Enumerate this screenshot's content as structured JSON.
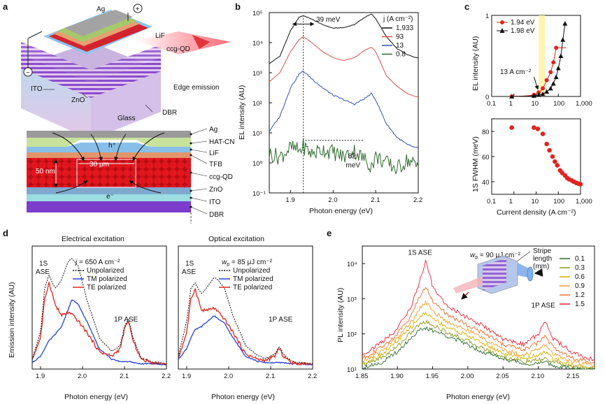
{
  "panels": {
    "a": {
      "label": "a",
      "device_labels": [
        "Ag",
        "LiF",
        "ccg-QD",
        "ITO",
        "ZnO",
        "Glass",
        "DBR",
        "Edge emission"
      ],
      "terminals": {
        "plus": "+",
        "minus": "−"
      },
      "stack_labels": [
        "Ag",
        "HAT-CN",
        "LiF",
        "TFB",
        "ccg-QD",
        "ZnO",
        "ITO",
        "DBR"
      ],
      "dim_50nm": "50 nm",
      "dim_30um": "30 μm",
      "hole": "h⁺",
      "electron": "e⁻",
      "colors": {
        "ag": "#9a9a9a",
        "hatcn": "#c7e29a",
        "lif": "#88bfe8",
        "tfb": "#e1956b",
        "qd": "#d8131b",
        "zno": "#7fa8cf",
        "ito": "#9bdde0",
        "dbr": "#7c3ccc"
      }
    },
    "b": {
      "label": "b",
      "chart_data": {
        "type": "line",
        "xlabel": "Photon energy (eV)",
        "ylabel": "EL intensity (AU)",
        "xlim": [
          1.85,
          2.2
        ],
        "ylim_log10": [
          -1,
          5
        ],
        "x_ticks": [
          "1.9",
          "2.0",
          "2.1",
          "2.2"
        ],
        "y_ticks": [
          "10⁻¹",
          "10⁰",
          "10¹",
          "10²",
          "10³",
          "10⁴",
          "10⁵"
        ],
        "legend_title": "j (A cm⁻²)",
        "legend_entries": [
          "1,933",
          "93",
          "13",
          "0.8"
        ],
        "series_colors": [
          "#111111",
          "#d9534f",
          "#3350b0",
          "#2e6b2e"
        ],
        "peak_log10": [
          4.9,
          4.2,
          3.05,
          0.55
        ],
        "annotations": [
          "39 meV",
          "82 meV"
        ],
        "x": [
          1.85,
          1.875,
          1.9,
          1.92,
          1.93,
          1.95,
          1.975,
          2.0,
          2.025,
          2.05,
          2.075,
          2.09,
          2.1,
          2.125,
          2.15,
          2.175,
          2.195
        ],
        "series": [
          {
            "name": "1,933",
            "log10": [
              3.3,
              3.55,
              4.4,
              4.85,
              4.9,
              4.78,
              4.6,
              4.48,
              4.5,
              4.6,
              4.85,
              4.95,
              4.8,
              4.2,
              3.8,
              3.6,
              3.5
            ]
          },
          {
            "name": "93",
            "log10": [
              2.7,
              3.0,
              3.7,
              4.1,
              4.2,
              4.0,
              3.7,
              3.5,
              3.4,
              3.5,
              3.75,
              3.85,
              3.7,
              2.9,
              2.55,
              2.3,
              2.2
            ]
          },
          {
            "name": "13",
            "log10": [
              1.05,
              1.55,
              2.5,
              2.95,
              3.05,
              2.8,
              2.5,
              2.25,
              2.1,
              1.95,
              2.15,
              2.3,
              2.1,
              1.3,
              0.85,
              0.6,
              0.5
            ]
          },
          {
            "name": "0.8",
            "log10": [
              0.3,
              0.2,
              0.5,
              0.4,
              0.55,
              0.3,
              0.45,
              0.35,
              0.2,
              0.4,
              0.1,
              -0.1,
              0.2,
              0.0,
              -0.2,
              0.1,
              -0.1
            ]
          }
        ]
      }
    },
    "c": {
      "label": "c",
      "top": {
        "chart_data": {
          "type": "scatter",
          "xlabel": "",
          "ylabel": "EL intensity (AU)",
          "x_scale": "log",
          "xlim": [
            0.1,
            1000
          ],
          "ylim": [
            0,
            1
          ],
          "x_ticks": [
            "0.1",
            "1",
            "10",
            "100",
            "1,000"
          ],
          "y_ticks": [
            "0",
            "1"
          ],
          "annotation": "13 A cm⁻²",
          "series": [
            {
              "name": "1.94 eV",
              "color": "#e0251f",
              "marker": "circle",
              "x": [
                0.8,
                8,
                13,
                20,
                30,
                45,
                60,
                80
              ],
              "y": [
                0.0,
                0.02,
                0.05,
                0.1,
                0.2,
                0.3,
                0.42,
                0.6
              ]
            },
            {
              "name": "1.98 eV",
              "color": "#111111",
              "marker": "triangle",
              "x": [
                0.8,
                8,
                13,
                20,
                30,
                45,
                60,
                80,
                100,
                130,
                160,
                200
              ],
              "y": [
                0.0,
                0.01,
                0.02,
                0.03,
                0.06,
                0.1,
                0.16,
                0.24,
                0.35,
                0.5,
                0.7,
                0.9
              ]
            }
          ]
        }
      },
      "bottom": {
        "chart_data": {
          "type": "scatter",
          "xlabel": "Current density (A cm⁻²)",
          "ylabel": "1S FWHM (meV)",
          "x_scale": "log",
          "xlim": [
            0.1,
            1000
          ],
          "ylim": [
            30,
            90
          ],
          "x_ticks": [
            "0.1",
            "1",
            "10",
            "100",
            "1,000"
          ],
          "y_ticks": [
            "40",
            "60",
            "80"
          ],
          "series": [
            {
              "name": "1S FWHM",
              "color": "#e0251f",
              "x": [
                0.8,
                8,
                12,
                20,
                30,
                40,
                55,
                70,
                90,
                120,
                150,
                200,
                250,
                300,
                400,
                500,
                650,
                800,
                1000
              ],
              "y": [
                83,
                83,
                82,
                78,
                70,
                65,
                60,
                56,
                53,
                49,
                47,
                45,
                43,
                42,
                41,
                40,
                39,
                38.5,
                38
              ]
            }
          ]
        }
      }
    },
    "d": {
      "label": "d",
      "left": {
        "title": "Electrical excitation",
        "param_sym": "j",
        "param_val": " = 650 A cm⁻²",
        "peak1": "1S",
        "peak1b": "ASE",
        "peak2": "1P ASE",
        "xlabel": "Photon energy (eV)",
        "ylabel": "Emission intensity (AU)",
        "chart_data": {
          "type": "line",
          "xlim": [
            1.88,
            2.2
          ],
          "x_ticks": [
            "1.9",
            "2.0",
            "2.1",
            "2.2"
          ],
          "legend": [
            "Unpolarized",
            "TM polarized",
            "TE polarized"
          ],
          "colors": [
            "#111111",
            "#2443d6",
            "#e0251f"
          ],
          "x": [
            1.88,
            1.9,
            1.91,
            1.92,
            1.935,
            1.95,
            1.965,
            1.975,
            1.99,
            2.01,
            2.04,
            2.07,
            2.09,
            2.1,
            2.11,
            2.12,
            2.14,
            2.17,
            2.2
          ],
          "series": [
            {
              "name": "Unpolarized",
              "values": [
                0.05,
                0.3,
                0.7,
                0.82,
                0.7,
                0.78,
                0.94,
                0.98,
                0.9,
                0.6,
                0.25,
                0.12,
                0.18,
                0.35,
                0.42,
                0.25,
                0.06,
                0.02,
                0.01
              ]
            },
            {
              "name": "TM polarized",
              "values": [
                0.02,
                0.08,
                0.15,
                0.22,
                0.28,
                0.35,
                0.5,
                0.6,
                0.55,
                0.4,
                0.15,
                0.05,
                0.03,
                0.03,
                0.03,
                0.02,
                0.01,
                0.01,
                0.0
              ]
            },
            {
              "name": "TE polarized",
              "values": [
                0.05,
                0.25,
                0.6,
                0.76,
                0.55,
                0.45,
                0.48,
                0.46,
                0.4,
                0.3,
                0.12,
                0.08,
                0.15,
                0.33,
                0.4,
                0.22,
                0.05,
                0.02,
                0.01
              ]
            }
          ]
        }
      },
      "right": {
        "title": "Optical excitation",
        "param_sym": "w",
        "param_sub": "p",
        "param_val": " = 85 μJ cm⁻²",
        "peak1": "1S",
        "peak1b": "ASE",
        "peak2": "1P ASE",
        "xlabel": "Photon energy (eV)",
        "chart_data": {
          "type": "line",
          "xlim": [
            1.88,
            2.2
          ],
          "x_ticks": [
            "1.9",
            "2.0",
            "2.1",
            "2.2"
          ],
          "legend": [
            "Unpolarized",
            "TM polarized",
            "TE polarized"
          ],
          "colors": [
            "#111111",
            "#2443d6",
            "#e0251f"
          ],
          "x": [
            1.88,
            1.9,
            1.91,
            1.92,
            1.935,
            1.95,
            1.965,
            1.975,
            1.99,
            2.01,
            2.04,
            2.07,
            2.09,
            2.11,
            2.12,
            2.13,
            2.15,
            2.17,
            2.2
          ],
          "series": [
            {
              "name": "Unpolarized",
              "values": [
                0.08,
                0.4,
                0.7,
                0.75,
                0.65,
                0.72,
                0.8,
                0.78,
                0.7,
                0.45,
                0.18,
                0.08,
                0.06,
                0.1,
                0.17,
                0.1,
                0.03,
                0.02,
                0.01
              ]
            },
            {
              "name": "TM polarized",
              "values": [
                0.05,
                0.15,
                0.25,
                0.32,
                0.35,
                0.4,
                0.45,
                0.42,
                0.38,
                0.25,
                0.08,
                0.03,
                0.02,
                0.02,
                0.02,
                0.02,
                0.01,
                0.01,
                0.0
              ]
            },
            {
              "name": "TE polarized",
              "values": [
                0.06,
                0.3,
                0.6,
                0.7,
                0.5,
                0.5,
                0.52,
                0.48,
                0.42,
                0.3,
                0.1,
                0.05,
                0.04,
                0.08,
                0.15,
                0.08,
                0.02,
                0.01,
                0.01
              ]
            }
          ]
        }
      }
    },
    "e": {
      "label": "e",
      "peak1": "1S ASE",
      "peak2": "1P ASE",
      "pump_sym": "w",
      "pump_sub": "p",
      "pump_val": " = 90 μJ cm⁻²",
      "stripe_label": [
        "Stripe",
        "length",
        "(mm)"
      ],
      "chart_data": {
        "type": "line",
        "xlabel": "Photon energy (eV)",
        "ylabel": "PL intensity (AU)",
        "xlim": [
          1.85,
          2.18
        ],
        "ylim_log10": [
          1,
          4.5
        ],
        "x_ticks": [
          "1.85",
          "1.90",
          "1.95",
          "2.00",
          "2.05",
          "2.10",
          "2.15"
        ],
        "y_ticks": [
          "10¹",
          "10²",
          "10³",
          "10⁴"
        ],
        "legend": [
          "0.1",
          "0.3",
          "0.6",
          "0.9",
          "1.2",
          "1.5"
        ],
        "colors": [
          "#2e6b2e",
          "#8c9a1e",
          "#d6b000",
          "#f0a030",
          "#ee6a2a",
          "#e8223a"
        ],
        "x": [
          1.85,
          1.88,
          1.9,
          1.92,
          1.93,
          1.94,
          1.95,
          1.97,
          2.0,
          2.02,
          2.05,
          2.08,
          2.1,
          2.11,
          2.12,
          2.15,
          2.18
        ],
        "series": [
          {
            "name": "0.1",
            "log10": [
              1.05,
              1.2,
              1.5,
              1.9,
              2.1,
              2.15,
              2.1,
              1.95,
              1.7,
              1.5,
              1.3,
              1.15,
              1.15,
              1.2,
              1.1,
              1.0,
              1.0
            ]
          },
          {
            "name": "0.3",
            "log10": [
              1.1,
              1.35,
              1.65,
              2.05,
              2.25,
              2.35,
              2.25,
              2.05,
              1.8,
              1.6,
              1.35,
              1.2,
              1.25,
              1.3,
              1.2,
              1.05,
              1.0
            ]
          },
          {
            "name": "0.6",
            "log10": [
              1.15,
              1.45,
              1.8,
              2.2,
              2.45,
              2.6,
              2.45,
              2.2,
              1.95,
              1.75,
              1.45,
              1.3,
              1.4,
              1.5,
              1.3,
              1.1,
              1.05
            ]
          },
          {
            "name": "0.9",
            "log10": [
              1.2,
              1.55,
              1.9,
              2.35,
              2.7,
              2.9,
              2.65,
              2.35,
              2.1,
              1.9,
              1.55,
              1.4,
              1.55,
              1.7,
              1.45,
              1.2,
              1.1
            ]
          },
          {
            "name": "1.2",
            "log10": [
              1.3,
              1.65,
              2.0,
              2.55,
              3.0,
              3.35,
              2.95,
              2.55,
              2.25,
              2.05,
              1.7,
              1.55,
              1.75,
              1.95,
              1.65,
              1.3,
              1.15
            ]
          },
          {
            "name": "1.5",
            "log10": [
              1.4,
              1.8,
              2.15,
              2.8,
              3.4,
              4.05,
              3.35,
              2.8,
              2.45,
              2.25,
              1.85,
              1.7,
              2.0,
              2.35,
              1.9,
              1.45,
              1.25
            ]
          }
        ]
      }
    }
  }
}
